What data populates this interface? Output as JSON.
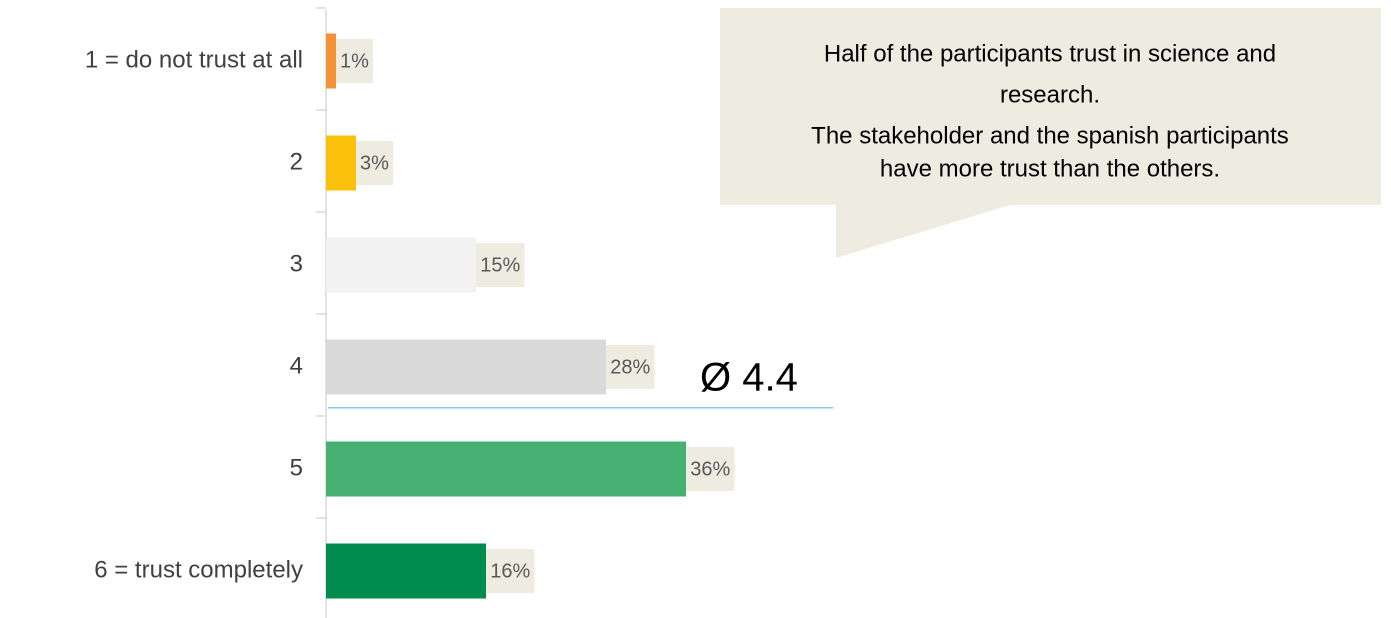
{
  "chart_data": {
    "type": "bar",
    "orientation": "horizontal",
    "categories": [
      "1 = do not trust at all",
      "2",
      "3",
      "4",
      "5",
      "6 = trust completely"
    ],
    "values": [
      1,
      3,
      15,
      28,
      36,
      16
    ],
    "value_labels": [
      "1%",
      "3%",
      "15%",
      "28%",
      "36%",
      "16%"
    ],
    "colors": [
      "#f39237",
      "#fac00a",
      "#f2f2f2",
      "#d9d9d9",
      "#45b072",
      "#008c4f"
    ],
    "xlim": [
      0,
      100
    ],
    "mean": {
      "value": 4.4,
      "label": "Ø 4.4"
    },
    "annotation": [
      "Half of the participants trust in science and",
      "research.",
      "The stakeholder and the spanish participants",
      "have more trust than the others."
    ]
  }
}
